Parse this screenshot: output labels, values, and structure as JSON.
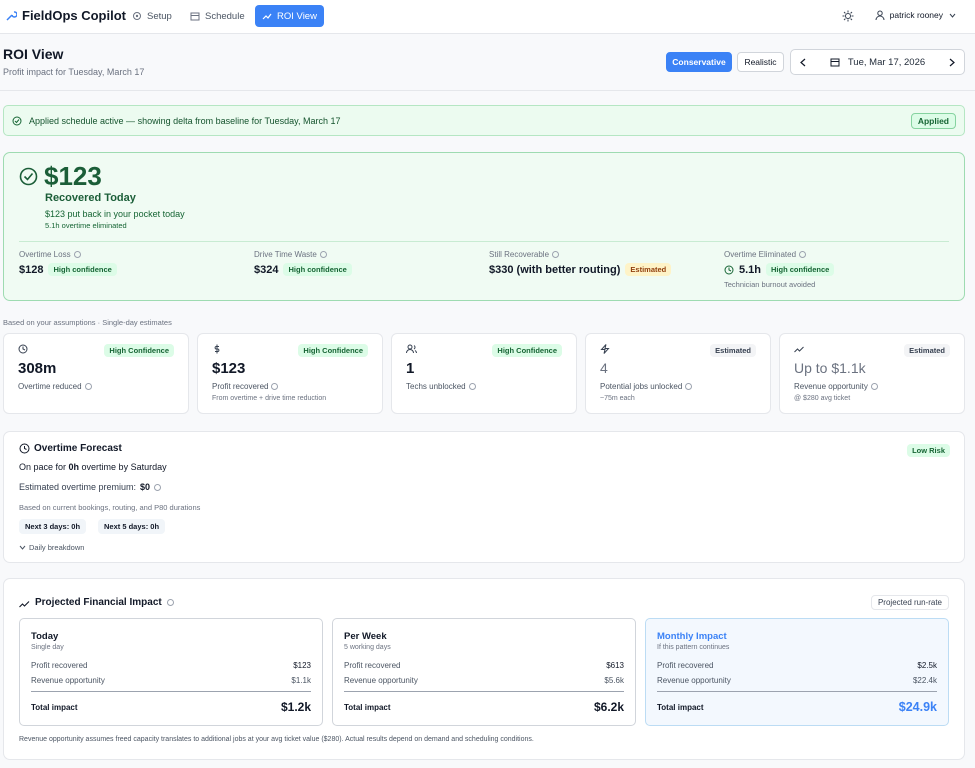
{
  "nav": {
    "brand": "FieldOps Copilot",
    "tabs": [
      "Setup",
      "Schedule",
      "ROI View"
    ],
    "user": "patrick rooney"
  },
  "header": {
    "title": "ROI View",
    "subtitle": "Profit impact for Tuesday, March 17",
    "modes": [
      "Conservative",
      "Realistic"
    ],
    "date": "Tue, Mar 17, 2026"
  },
  "banner": {
    "text": "Applied schedule active — showing delta from baseline for Tuesday, March 17",
    "badge": "Applied"
  },
  "hero": {
    "amount": "$123",
    "label": "Recovered Today",
    "line1": "$123 put back in your pocket today",
    "line2": "5.1h overtime eliminated",
    "metrics": [
      {
        "label": "Overtime Loss",
        "value": "$128",
        "badge": "High confidence"
      },
      {
        "label": "Drive Time Waste",
        "value": "$324",
        "badge": "High confidence"
      },
      {
        "label": "Still Recoverable",
        "value": "$330 (with better routing)",
        "badge": "Estimated"
      },
      {
        "label": "Overtime Eliminated",
        "value": "5.1h",
        "badge": "High confidence",
        "note": "Technician burnout avoided"
      }
    ]
  },
  "assumptions": "Based on your assumptions · Single-day estimates",
  "cards": [
    {
      "badge": "High Confidence",
      "value": "308m",
      "label": "Overtime reduced"
    },
    {
      "badge": "High Confidence",
      "value": "$123",
      "label": "Profit recovered",
      "note": "From overtime + drive time reduction"
    },
    {
      "badge": "High Confidence",
      "value": "1",
      "label": "Techs unblocked"
    },
    {
      "badge": "Estimated",
      "value": "4",
      "label": "Potential jobs unlocked",
      "note": "~75m each"
    },
    {
      "badge": "Estimated",
      "value": "Up to $1.1k",
      "label": "Revenue opportunity",
      "note": "@ $280 avg ticket"
    }
  ],
  "forecast": {
    "title": "Overtime Forecast",
    "risk": "Low Risk",
    "pace": [
      "On pace for ",
      "0h",
      " overtime by Saturday"
    ],
    "premium_label": "Estimated overtime premium:",
    "premium": "$0",
    "basis": "Based on current bookings, routing, and P80 durations",
    "chips": [
      "Next 3 days: 0h",
      "Next 5 days: 0h"
    ],
    "breakdown": "Daily breakdown"
  },
  "projected": {
    "title": "Projected Financial Impact",
    "badge": "Projected run-rate",
    "boxes": [
      {
        "title": "Today",
        "subtitle": "Single day",
        "rows": [
          {
            "label": "Profit recovered",
            "value": "$123"
          },
          {
            "label": "Revenue opportunity",
            "value": "$1.1k"
          }
        ],
        "total_label": "Total impact",
        "total": "$1.2k"
      },
      {
        "title": "Per Week",
        "subtitle": "5 working days",
        "rows": [
          {
            "label": "Profit recovered",
            "value": "$613"
          },
          {
            "label": "Revenue opportunity",
            "value": "$5.6k"
          }
        ],
        "total_label": "Total impact",
        "total": "$6.2k"
      },
      {
        "title": "Monthly Impact",
        "subtitle": "If this pattern continues",
        "rows": [
          {
            "label": "Profit recovered",
            "value": "$2.5k"
          },
          {
            "label": "Revenue opportunity",
            "value": "$22.4k"
          }
        ],
        "total_label": "Total impact",
        "total": "$24.9k"
      }
    ],
    "footnote": "Revenue opportunity assumes freed capacity translates to additional jobs at your avg ticket value ($280). Actual results depend on demand and scheduling conditions."
  }
}
